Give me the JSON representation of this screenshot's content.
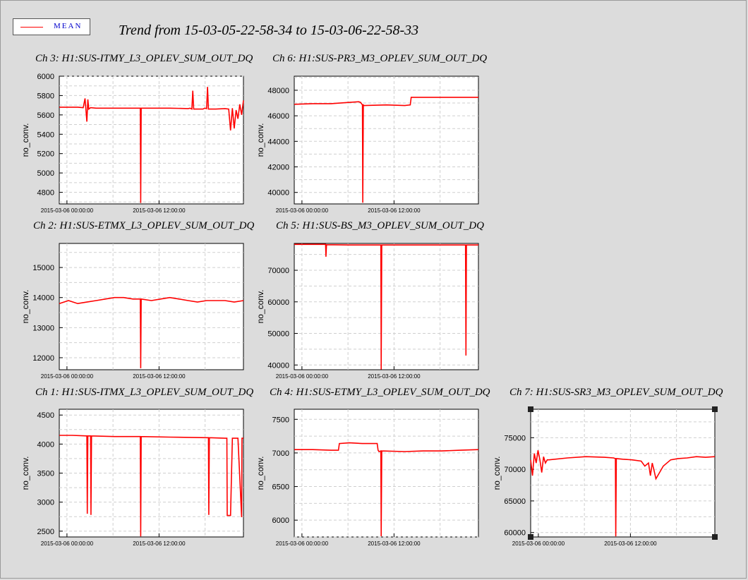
{
  "window": {
    "title": "Trend from 15-03-05-22-58-34 to 15-03-06-22-58-33",
    "legend_label": "MEAN",
    "line_color": "#ff0000"
  },
  "chart_data": [
    {
      "type": "line",
      "title": "Ch 3: H1:SUS-ITMY_L3_OPLEV_SUM_OUT_DQ",
      "ylabel": "no_conv.",
      "ylim": [
        4680,
        6000
      ],
      "yticks": [
        4800,
        5000,
        5200,
        5400,
        5600,
        5800,
        6000
      ],
      "xticks": [
        {
          "label": "2015-03-06 00:00:00",
          "t": 0.0417
        },
        {
          "label": "2015-03-06 12:00:00",
          "t": 0.5417
        }
      ],
      "series": [
        {
          "x": [
            0,
            0.05,
            0.1,
            0.13,
            0.14,
            0.15,
            0.155,
            0.16,
            0.17,
            0.2,
            0.3,
            0.4,
            0.44,
            0.442,
            0.445,
            0.5,
            0.6,
            0.7,
            0.71,
            0.72,
            0.725,
            0.73,
            0.75,
            0.78,
            0.79,
            0.8,
            0.805,
            0.81,
            0.85,
            0.9,
            0.92,
            0.93,
            0.94,
            0.95,
            0.96,
            0.97,
            0.98,
            0.99,
            1.0
          ],
          "y": [
            5680,
            5680,
            5680,
            5675,
            5770,
            5530,
            5760,
            5660,
            5675,
            5670,
            5670,
            5670,
            5670,
            4690,
            5670,
            5670,
            5670,
            5665,
            5670,
            5660,
            5850,
            5660,
            5660,
            5660,
            5670,
            5665,
            5890,
            5660,
            5660,
            5665,
            5660,
            5440,
            5670,
            5460,
            5650,
            5560,
            5710,
            5600,
            5750
          ]
        }
      ]
    },
    {
      "type": "line",
      "title": "Ch 6: H1:SUS-PR3_M3_OPLEV_SUM_OUT_DQ",
      "ylabel": "no_conv.",
      "ylim": [
        39100,
        49100
      ],
      "yticks": [
        40000,
        42000,
        44000,
        46000,
        48000
      ],
      "xticks": [
        {
          "label": "2015-03-06 00:00:00",
          "t": 0.0417
        },
        {
          "label": "2015-03-06 12:00:00",
          "t": 0.5417
        }
      ],
      "series": [
        {
          "x": [
            0,
            0.1,
            0.2,
            0.3,
            0.35,
            0.36,
            0.37,
            0.372,
            0.375,
            0.38,
            0.5,
            0.6,
            0.63,
            0.635,
            0.8,
            1.0
          ],
          "y": [
            46900,
            46950,
            46950,
            47050,
            47100,
            47050,
            46850,
            39200,
            46850,
            46800,
            46850,
            46800,
            46850,
            47450,
            47450,
            47450
          ]
        }
      ]
    },
    {
      "type": "line",
      "title": "Ch 2: H1:SUS-ETMX_L3_OPLEV_SUM_OUT_DQ",
      "ylabel": "no_conv.",
      "ylim": [
        11600,
        15800
      ],
      "yticks": [
        12000,
        13000,
        14000,
        15000
      ],
      "xticks": [
        {
          "label": "2015-03-06 00:00:00",
          "t": 0.0417
        },
        {
          "label": "2015-03-06 12:00:00",
          "t": 0.5417
        }
      ],
      "series": [
        {
          "x": [
            0,
            0.05,
            0.1,
            0.15,
            0.2,
            0.25,
            0.3,
            0.35,
            0.4,
            0.44,
            0.442,
            0.445,
            0.5,
            0.55,
            0.6,
            0.65,
            0.7,
            0.75,
            0.8,
            0.85,
            0.9,
            0.95,
            1.0
          ],
          "y": [
            13800,
            13900,
            13800,
            13850,
            13900,
            13950,
            14000,
            14000,
            13950,
            13950,
            11650,
            13950,
            13900,
            13950,
            14000,
            13950,
            13900,
            13850,
            13900,
            13900,
            13900,
            13850,
            13900
          ]
        }
      ]
    },
    {
      "type": "line",
      "title": "Ch 5: H1:SUS-BS_M3_OPLEV_SUM_OUT_DQ",
      "ylabel": "no_conv.",
      "ylim": [
        38500,
        78500
      ],
      "yticks": [
        40000,
        50000,
        60000,
        70000
      ],
      "xticks": [
        {
          "label": "2015-03-06 00:00:00",
          "t": 0.0417
        },
        {
          "label": "2015-03-06 12:00:00",
          "t": 0.5417
        }
      ],
      "series": [
        {
          "x": [
            0,
            0.17,
            0.172,
            0.175,
            0.3,
            0.47,
            0.472,
            0.475,
            0.6,
            0.93,
            0.932,
            0.935,
            1.0
          ],
          "y": [
            78200,
            78200,
            74300,
            78100,
            78000,
            78000,
            38600,
            78000,
            78000,
            78000,
            43000,
            78000,
            78000
          ]
        }
      ]
    },
    {
      "type": "line",
      "title": "Ch 1: H1:SUS-ITMX_L3_OPLEV_SUM_OUT_DQ",
      "ylabel": "no_conv.",
      "ylim": [
        2400,
        4600
      ],
      "yticks": [
        2500,
        3000,
        3500,
        4000,
        4500
      ],
      "xticks": [
        {
          "label": "2015-03-06 00:00:00",
          "t": 0.0417
        },
        {
          "label": "2015-03-06 12:00:00",
          "t": 0.5417
        }
      ],
      "series": [
        {
          "x": [
            0,
            0.07,
            0.15,
            0.152,
            0.155,
            0.17,
            0.172,
            0.175,
            0.3,
            0.44,
            0.442,
            0.445,
            0.6,
            0.8,
            0.81,
            0.812,
            0.815,
            0.9,
            0.91,
            0.912,
            0.93,
            0.94,
            0.942,
            0.96,
            0.97,
            0.99,
            0.992,
            1.0
          ],
          "y": [
            4150,
            4150,
            4140,
            2800,
            4140,
            4140,
            2780,
            4140,
            4130,
            4130,
            2410,
            4130,
            4120,
            4110,
            4110,
            2780,
            4110,
            4100,
            4100,
            2770,
            2770,
            4100,
            4100,
            4100,
            4100,
            2740,
            4100,
            4100
          ]
        }
      ]
    },
    {
      "type": "line",
      "title": "Ch 4: H1:SUS-ETMY_L3_OPLEV_SUM_OUT_DQ",
      "ylabel": "no_conv.",
      "ylim": [
        5750,
        7650
      ],
      "yticks": [
        6000,
        6500,
        7000,
        7500
      ],
      "xticks": [
        {
          "label": "2015-03-06 00:00:00",
          "t": 0.0417
        },
        {
          "label": "2015-03-06 12:00:00",
          "t": 0.5417
        }
      ],
      "series": [
        {
          "x": [
            0,
            0.1,
            0.2,
            0.24,
            0.245,
            0.3,
            0.37,
            0.45,
            0.455,
            0.46,
            0.47,
            0.472,
            0.475,
            0.6,
            0.7,
            0.8,
            0.9,
            1.0
          ],
          "y": [
            7050,
            7050,
            7040,
            7040,
            7140,
            7150,
            7140,
            7140,
            7040,
            7020,
            7030,
            5760,
            7030,
            7020,
            7030,
            7030,
            7040,
            7050
          ]
        }
      ]
    },
    {
      "type": "line",
      "title": "Ch 7: H1:SUS-SR3_M3_OPLEV_SUM_OUT_DQ",
      "ylabel": "no_conv.",
      "ylim": [
        59300,
        79500
      ],
      "yticks": [
        60000,
        65000,
        70000,
        75000
      ],
      "xticks": [
        {
          "label": "2015-03-06 00:00:00",
          "t": 0.0417
        },
        {
          "label": "2015-03-06 12:00:00",
          "t": 0.5417
        }
      ],
      "series": [
        {
          "x": [
            0,
            0.01,
            0.02,
            0.03,
            0.04,
            0.05,
            0.06,
            0.07,
            0.08,
            0.09,
            0.1,
            0.2,
            0.3,
            0.4,
            0.45,
            0.46,
            0.462,
            0.465,
            0.5,
            0.55,
            0.6,
            0.62,
            0.64,
            0.65,
            0.66,
            0.67,
            0.68,
            0.7,
            0.72,
            0.74,
            0.76,
            0.8,
            0.85,
            0.9,
            0.95,
            1.0
          ],
          "y": [
            71500,
            69000,
            72500,
            71000,
            73000,
            71500,
            69500,
            72000,
            71000,
            71500,
            71500,
            71800,
            72000,
            71900,
            71800,
            71700,
            59400,
            71700,
            71600,
            71500,
            71300,
            70500,
            71000,
            69000,
            71000,
            69800,
            68500,
            69500,
            70500,
            71000,
            71500,
            71700,
            71800,
            72000,
            71900,
            72000
          ]
        }
      ]
    }
  ]
}
